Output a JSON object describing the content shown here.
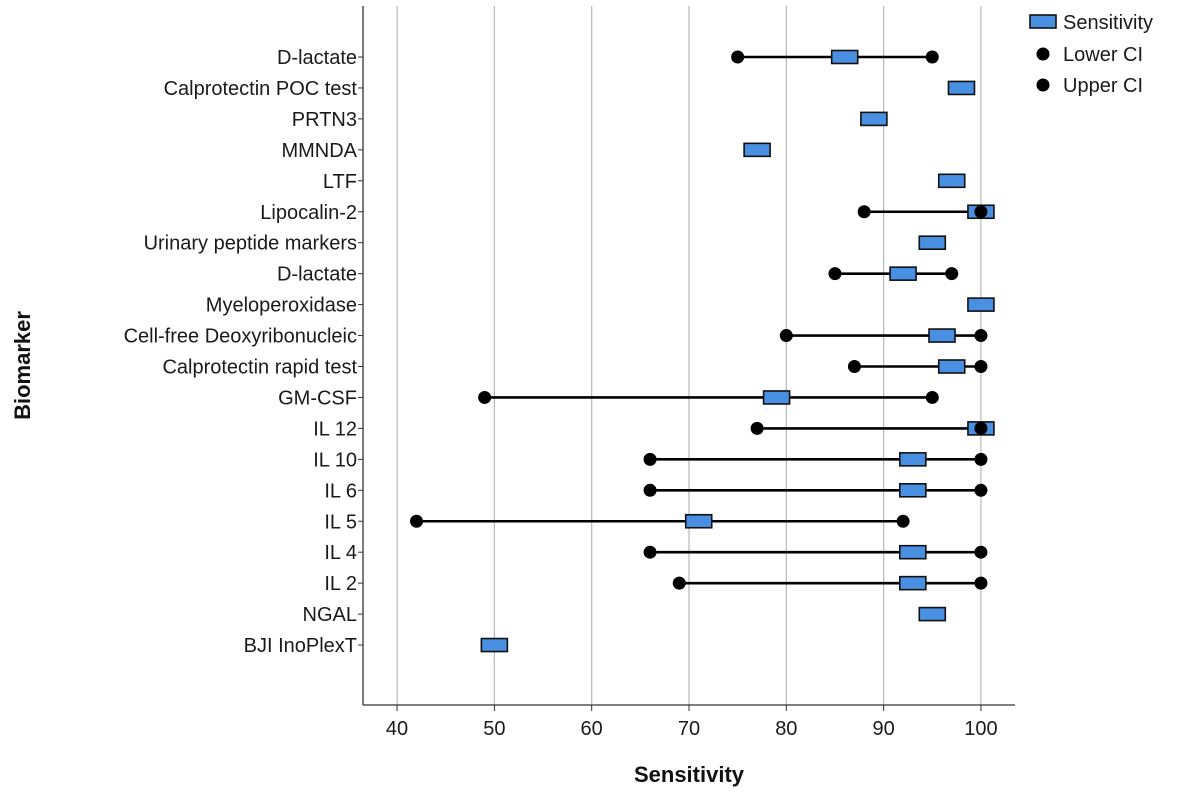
{
  "chart_data": {
    "type": "range-dot",
    "title": "",
    "xlabel": "Sensitivity",
    "ylabel": "Biomarker",
    "xlim": [
      36.5,
      103.5
    ],
    "xticks": [
      40,
      50,
      60,
      70,
      80,
      90,
      100
    ],
    "grid": "vertical",
    "legend_position": "top-right",
    "legend": [
      {
        "name": "Sensitivity",
        "marker": "rectangle",
        "color": "#4a90e2"
      },
      {
        "name": "Lower CI",
        "marker": "circle",
        "color": "#000000"
      },
      {
        "name": "Upper CI",
        "marker": "circle",
        "color": "#000000"
      }
    ],
    "categories": [
      "D-lactate",
      "Calprotectin POC test",
      "PRTN3",
      "MMNDA",
      "LTF",
      "Lipocalin-2",
      "Urinary peptide markers",
      "D-lactate",
      "Myeloperoxidase",
      "Cell-free Deoxyribonucleic",
      "Calprotectin rapid test",
      "GM-CSF",
      "IL 12",
      "IL 10",
      "IL 6",
      "IL 5",
      "IL 4",
      "IL 2",
      "NGAL",
      "BJI InoPlexT"
    ],
    "series": [
      {
        "name": "Sensitivity",
        "values": [
          86,
          98,
          89,
          77,
          97,
          100,
          95,
          92,
          100,
          96,
          97,
          79,
          100,
          93,
          93,
          71,
          93,
          93,
          95,
          50
        ]
      },
      {
        "name": "Lower CI",
        "values": [
          75,
          null,
          null,
          null,
          null,
          88,
          null,
          85,
          null,
          80,
          87,
          49,
          77,
          66,
          66,
          42,
          66,
          69,
          null,
          null
        ]
      },
      {
        "name": "Upper CI",
        "values": [
          95,
          null,
          null,
          null,
          null,
          100,
          null,
          97,
          null,
          100,
          100,
          95,
          100,
          100,
          100,
          92,
          100,
          100,
          null,
          null
        ]
      }
    ]
  }
}
